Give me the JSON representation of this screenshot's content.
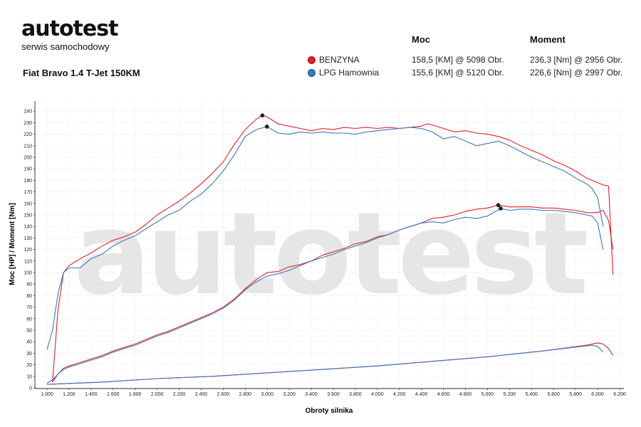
{
  "logo": {
    "name": "autotest",
    "subtitle": "serwis samochodowy"
  },
  "header": {
    "car": "Fiat Bravo 1.4 T-Jet 150KM",
    "col_power": "Moc",
    "col_torque": "Moment"
  },
  "legend": [
    {
      "name": "BENZYNA",
      "power": "158,5 [KM] @ 5098 Obr.",
      "torque": "236,3 [Nm] @ 2956 Obr.",
      "color": "#e0212b"
    },
    {
      "name": "LPG Hamownia",
      "power": "155,6 [KM] @ 5120 Obr.",
      "torque": "226,6 [Nm] @ 2997 Obr.",
      "color": "#3a78c2"
    }
  ],
  "chart_data": {
    "type": "line",
    "xlabel": "Obroty silnika",
    "ylabel": "Moc [HP] / Moment [Nm]",
    "xlim": [
      1000,
      6200
    ],
    "ylim": [
      0,
      250
    ],
    "xticks": [
      "1.000",
      "1.200",
      "1.400",
      "1.600",
      "1.800",
      "2.000",
      "2.200",
      "2.400",
      "2.600",
      "2.800",
      "3.000",
      "3.200",
      "3.400",
      "3.600",
      "3.800",
      "4.000",
      "4.200",
      "4.400",
      "4.600",
      "4.800",
      "5.000",
      "5.200",
      "5.400",
      "5.600",
      "5.800",
      "6.000",
      "6.200"
    ],
    "yticks": [
      "0",
      "10",
      "20",
      "30",
      "40",
      "50",
      "60",
      "70",
      "80",
      "90",
      "100",
      "110",
      "120",
      "130",
      "140",
      "150",
      "160",
      "170",
      "180",
      "190",
      "200",
      "210",
      "220",
      "230",
      "240"
    ],
    "grid": true,
    "watermark": "autotest",
    "series": [
      {
        "name": "BENZYNA",
        "kind": "torque",
        "color": "#e0212b",
        "x": [
          1050,
          1100,
          1150,
          1200,
          1300,
          1400,
          1500,
          1600,
          1700,
          1800,
          1900,
          2000,
          2100,
          2200,
          2300,
          2400,
          2500,
          2600,
          2700,
          2800,
          2900,
          2956,
          3000,
          3100,
          3200,
          3300,
          3400,
          3500,
          3600,
          3700,
          3800,
          3900,
          4000,
          4100,
          4200,
          4300,
          4400,
          4450,
          4500,
          4600,
          4700,
          4800,
          4900,
          5000,
          5100,
          5200,
          5300,
          5400,
          5500,
          5600,
          5700,
          5800,
          5900,
          6000,
          6050,
          6100,
          6140
        ],
        "y": [
          5,
          68,
          100,
          106,
          112,
          117,
          123,
          128,
          131,
          135,
          142,
          150,
          156,
          162,
          169,
          177,
          186,
          196,
          211,
          224,
          233,
          236.3,
          235,
          229,
          227,
          225,
          223,
          225,
          224,
          226,
          225,
          226,
          225,
          226,
          225,
          226,
          227,
          229,
          228,
          225,
          222,
          223,
          221,
          220,
          218,
          215,
          210,
          206,
          202,
          197,
          193,
          188,
          182,
          178,
          176,
          175,
          98
        ]
      },
      {
        "name": "LPG Hamownia",
        "kind": "torque",
        "color": "#3a78c2",
        "x": [
          1000,
          1050,
          1100,
          1150,
          1200,
          1300,
          1400,
          1500,
          1600,
          1700,
          1800,
          1900,
          2000,
          2100,
          2200,
          2300,
          2400,
          2500,
          2600,
          2700,
          2800,
          2900,
          2997,
          3100,
          3200,
          3300,
          3400,
          3500,
          3600,
          3700,
          3800,
          3900,
          4000,
          4100,
          4200,
          4300,
          4400,
          4500,
          4600,
          4700,
          4800,
          4900,
          5000,
          5100,
          5200,
          5300,
          5400,
          5500,
          5600,
          5700,
          5800,
          5900,
          5950,
          6000,
          6050
        ],
        "y": [
          33,
          50,
          82,
          100,
          104,
          104,
          112,
          116,
          123,
          128,
          132,
          138,
          144,
          150,
          154,
          162,
          168,
          177,
          188,
          202,
          218,
          224,
          226.6,
          221,
          220,
          222,
          221,
          222,
          221,
          221,
          220,
          222,
          223,
          224,
          225,
          226,
          225,
          222,
          216,
          218,
          214,
          210,
          212,
          214,
          210,
          205,
          200,
          196,
          192,
          188,
          182,
          177,
          173,
          165,
          140
        ]
      },
      {
        "name": "BENZYNA",
        "kind": "power",
        "color": "#e0212b",
        "x": [
          1050,
          1100,
          1150,
          1200,
          1300,
          1400,
          1500,
          1600,
          1700,
          1800,
          1900,
          2000,
          2100,
          2200,
          2300,
          2400,
          2500,
          2600,
          2700,
          2800,
          2900,
          3000,
          3100,
          3200,
          3300,
          3400,
          3500,
          3600,
          3700,
          3800,
          3900,
          4000,
          4100,
          4200,
          4300,
          4400,
          4500,
          4600,
          4700,
          4800,
          4900,
          5000,
          5098,
          5200,
          5300,
          5400,
          5500,
          5600,
          5700,
          5800,
          5900,
          6000,
          6050,
          6100,
          6140
        ],
        "y": [
          5,
          12,
          17,
          19,
          22,
          25,
          28,
          32,
          35,
          38,
          42,
          46,
          49,
          53,
          57,
          61,
          65,
          70,
          77,
          86,
          94,
          100,
          101,
          105,
          107,
          110,
          115,
          118,
          121,
          125,
          127,
          131,
          133,
          137,
          140,
          143,
          147,
          148,
          150,
          153,
          155,
          156,
          158.5,
          157,
          157,
          157,
          156,
          156,
          155,
          154,
          152,
          152,
          154,
          145,
          120
        ]
      },
      {
        "name": "LPG Hamownia",
        "kind": "power",
        "color": "#3a78c2",
        "x": [
          1000,
          1050,
          1100,
          1150,
          1200,
          1300,
          1400,
          1500,
          1600,
          1700,
          1800,
          1900,
          2000,
          2100,
          2200,
          2300,
          2400,
          2500,
          2600,
          2700,
          2800,
          2900,
          3000,
          3100,
          3200,
          3300,
          3400,
          3500,
          3600,
          3700,
          3800,
          3900,
          4000,
          4100,
          4200,
          4300,
          4400,
          4500,
          4600,
          4700,
          4800,
          4900,
          5000,
          5120,
          5200,
          5300,
          5400,
          5500,
          5600,
          5700,
          5800,
          5900,
          5950,
          6000,
          6050
        ],
        "y": [
          4,
          7,
          12,
          16,
          18,
          21,
          24,
          27,
          31,
          34,
          37,
          41,
          45,
          48,
          52,
          56,
          60,
          64,
          69,
          76,
          85,
          92,
          97,
          99,
          102,
          106,
          110,
          113,
          116,
          120,
          123,
          126,
          130,
          133,
          137,
          140,
          143,
          144,
          143,
          146,
          148,
          147,
          149,
          155.6,
          154,
          155,
          155,
          154,
          154,
          153,
          152,
          150,
          149,
          143,
          120
        ]
      },
      {
        "name": "BENZYNA",
        "kind": "aux",
        "color": "#e0212b",
        "x": [
          1000,
          1500,
          2000,
          2500,
          3000,
          3500,
          4000,
          4500,
          5000,
          5500,
          5900,
          6000,
          6050,
          6100,
          6140
        ],
        "y": [
          3,
          5,
          8,
          10,
          13,
          16,
          19,
          23,
          27,
          32,
          37,
          39,
          38,
          34,
          28
        ]
      },
      {
        "name": "LPG Hamownia",
        "kind": "aux",
        "color": "#3a78c2",
        "x": [
          1000,
          1500,
          2000,
          2500,
          3000,
          3500,
          4000,
          4500,
          5000,
          5500,
          5950,
          6000,
          6050
        ],
        "y": [
          3,
          5,
          8,
          10,
          13,
          16,
          19,
          23,
          27,
          32,
          37,
          36,
          31
        ]
      }
    ],
    "markers": [
      {
        "x": 2956,
        "y": 236.3
      },
      {
        "x": 2997,
        "y": 226.6
      },
      {
        "x": 5098,
        "y": 158.5
      },
      {
        "x": 5120,
        "y": 155.6
      }
    ]
  }
}
